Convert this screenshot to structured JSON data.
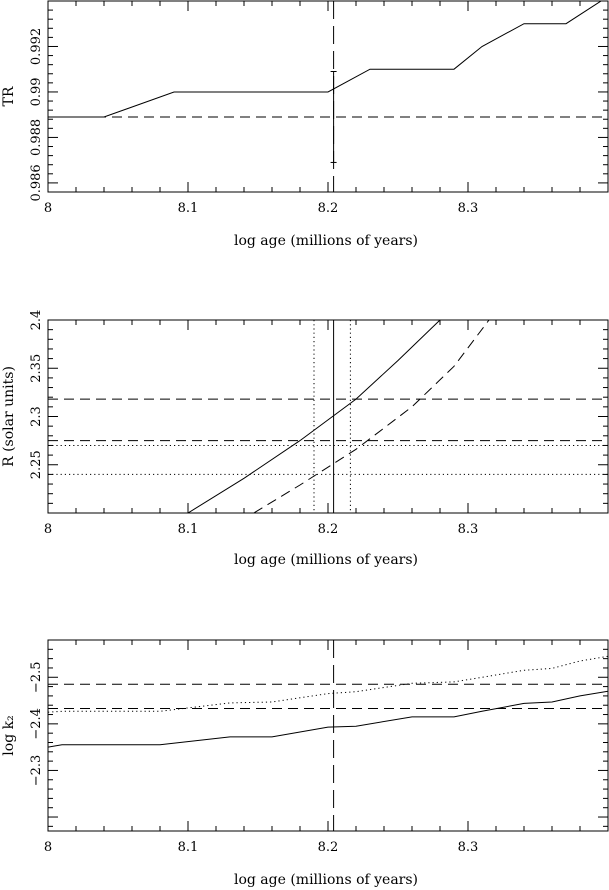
{
  "chart_data": [
    {
      "type": "line",
      "xlabel": "log age (millions of years)",
      "ylabel": "TR",
      "xlim": [
        8.0,
        8.4
      ],
      "ylim": [
        0.9856,
        0.994
      ],
      "x_ticks": [
        8.0,
        8.1,
        8.2,
        8.3
      ],
      "x_tick_labels": [
        "8",
        "8.1",
        "8.2",
        "8.3"
      ],
      "y_ticks": [
        0.986,
        0.988,
        0.99,
        0.992
      ],
      "y_tick_labels": [
        "0.986",
        "0.988",
        "0.99",
        "0.992"
      ],
      "series": [
        {
          "style": "solid",
          "x": [
            8.0,
            8.04,
            8.09,
            8.2,
            8.23,
            8.29,
            8.31,
            8.34,
            8.37,
            8.4
          ],
          "y": [
            0.9889,
            0.9889,
            0.99,
            0.99,
            0.991,
            0.991,
            0.992,
            0.993,
            0.993,
            0.9942
          ]
        }
      ],
      "hlines": [
        {
          "y": 0.9889,
          "style": "dashed"
        }
      ],
      "vlines": [
        {
          "x": 8.204,
          "style": "longdash"
        }
      ],
      "errorbars": [
        {
          "x": 8.204,
          "ylow": 0.9869,
          "yhigh": 0.9909
        }
      ]
    },
    {
      "type": "line",
      "xlabel": "log age (millions of years)",
      "ylabel": "R (solar units)",
      "xlim": [
        8.0,
        8.4
      ],
      "ylim": [
        2.2,
        2.4
      ],
      "x_ticks": [
        8.0,
        8.1,
        8.2,
        8.3
      ],
      "x_tick_labels": [
        "8",
        "8.1",
        "8.2",
        "8.3"
      ],
      "y_ticks": [
        2.25,
        2.3,
        2.35,
        2.4
      ],
      "y_tick_labels": [
        "2.25",
        "2.3",
        "2.35",
        "2.4"
      ],
      "series": [
        {
          "style": "solid",
          "x": [
            8.1,
            8.14,
            8.18,
            8.22,
            8.25,
            8.28
          ],
          "y": [
            2.2,
            2.236,
            2.275,
            2.318,
            2.358,
            2.4
          ]
        },
        {
          "style": "dashed",
          "x": [
            8.147,
            8.18,
            8.22,
            8.26,
            8.29,
            8.315
          ],
          "y": [
            2.2,
            2.229,
            2.266,
            2.31,
            2.352,
            2.4
          ]
        }
      ],
      "hlines": [
        {
          "y": 2.318,
          "style": "dashed"
        },
        {
          "y": 2.275,
          "style": "dashed"
        },
        {
          "y": 2.27,
          "style": "dotted"
        },
        {
          "y": 2.24,
          "style": "dotted"
        }
      ],
      "vlines": [
        {
          "x": 8.204,
          "style": "solid"
        },
        {
          "x": 8.19,
          "style": "dotted"
        },
        {
          "x": 8.216,
          "style": "dotted"
        }
      ]
    },
    {
      "type": "line",
      "xlabel": "log age (millions of years)",
      "ylabel": "log k₂",
      "xlim": [
        8.0,
        8.4
      ],
      "ylim": [
        -2.17,
        -2.58
      ],
      "x_ticks": [
        8.0,
        8.1,
        8.2,
        8.3
      ],
      "x_tick_labels": [
        "8",
        "8.1",
        "8.2",
        "8.3"
      ],
      "y_ticks": [
        -2.5,
        -2.4,
        -2.3
      ],
      "y_tick_labels": [
        "−2.5",
        "−2.4",
        "−2.3"
      ],
      "series": [
        {
          "style": "solid",
          "x": [
            8.0,
            8.01,
            8.08,
            8.13,
            8.16,
            8.2,
            8.22,
            8.26,
            8.29,
            8.31,
            8.34,
            8.36,
            8.38,
            8.4
          ],
          "y": [
            -2.35,
            -2.355,
            -2.355,
            -2.372,
            -2.372,
            -2.393,
            -2.395,
            -2.415,
            -2.415,
            -2.427,
            -2.444,
            -2.447,
            -2.46,
            -2.47
          ]
        },
        {
          "style": "dotted",
          "x": [
            8.0,
            8.01,
            8.08,
            8.13,
            8.16,
            8.2,
            8.22,
            8.26,
            8.29,
            8.31,
            8.34,
            8.36,
            8.38,
            8.4
          ],
          "y": [
            -2.425,
            -2.427,
            -2.427,
            -2.445,
            -2.447,
            -2.465,
            -2.469,
            -2.487,
            -2.49,
            -2.5,
            -2.515,
            -2.519,
            -2.535,
            -2.545
          ]
        }
      ],
      "hlines": [
        {
          "y": -2.485,
          "style": "dashed"
        },
        {
          "y": -2.433,
          "style": "dashed"
        }
      ],
      "vlines": [
        {
          "x": 8.204,
          "style": "longdash"
        }
      ]
    }
  ]
}
